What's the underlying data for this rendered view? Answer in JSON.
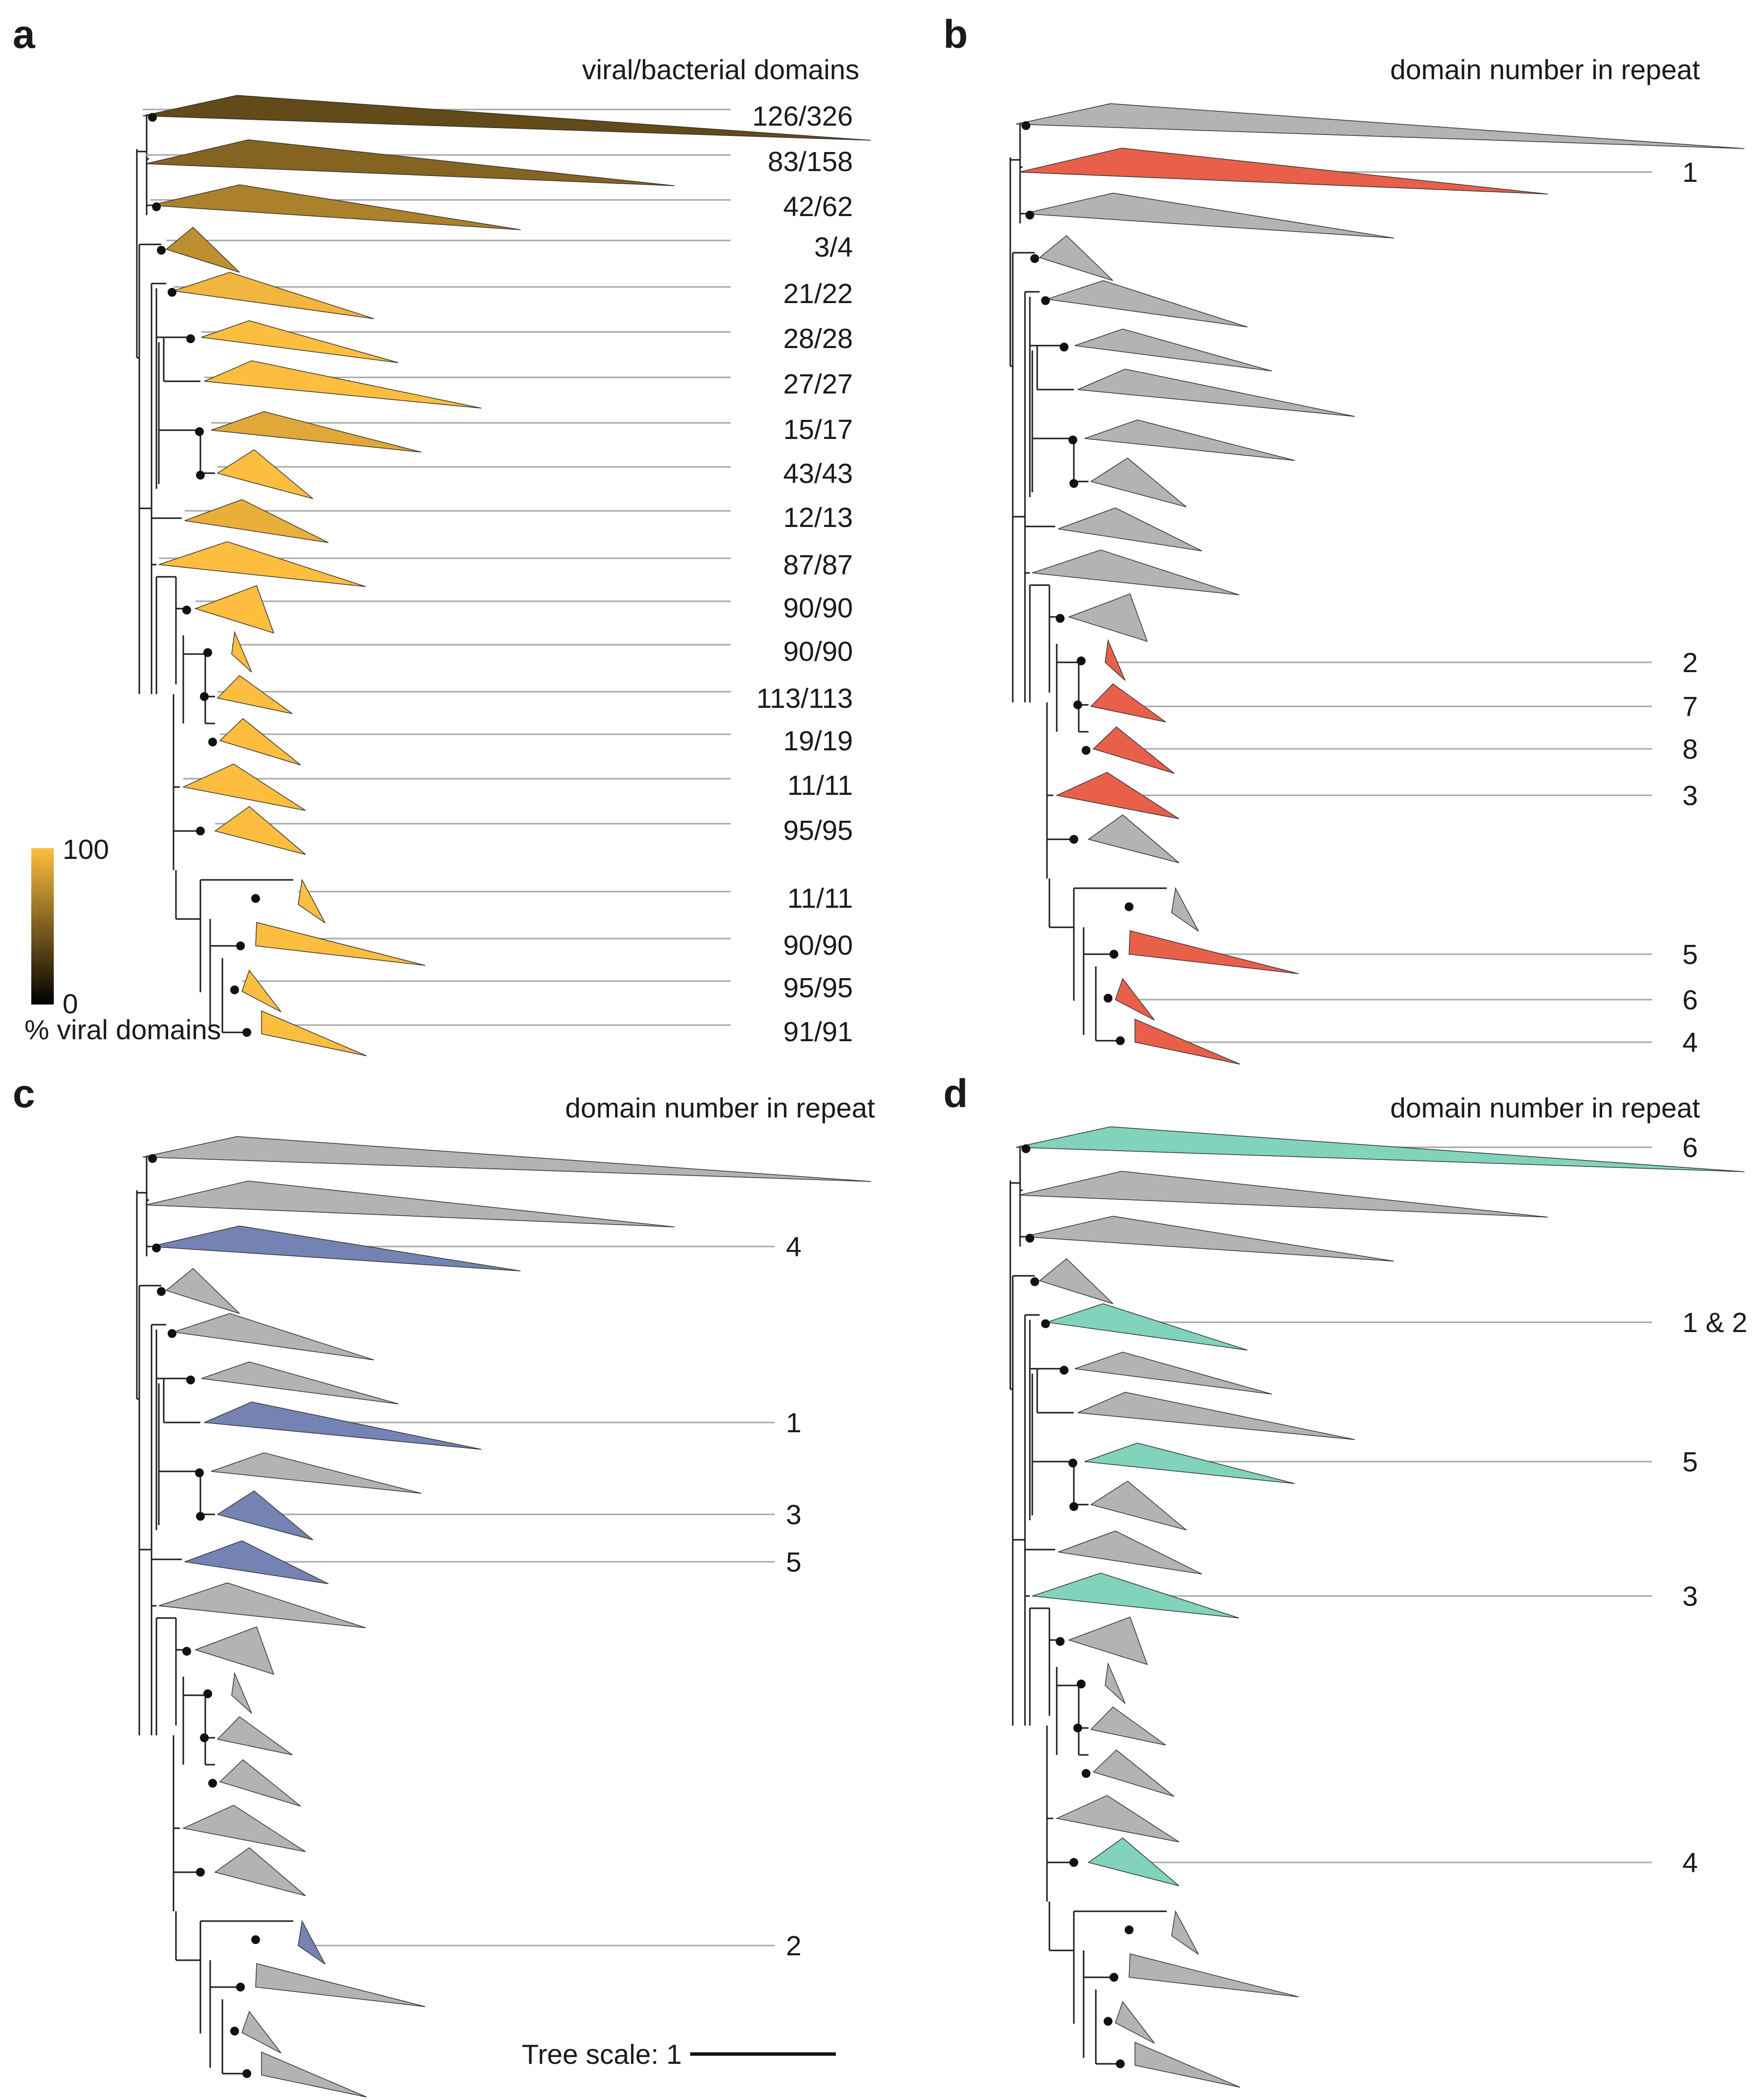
{
  "panels": [
    {
      "id": "a",
      "title": "viral/bacterial domains",
      "highlight_color": null,
      "clades": [
        {
          "tip": "126/326",
          "viral_pct": 38.7
        },
        {
          "tip": "83/158",
          "viral_pct": 52.5
        },
        {
          "tip": "42/62",
          "viral_pct": 67.7
        },
        {
          "tip": "3/4",
          "viral_pct": 75.0
        },
        {
          "tip": "21/22",
          "viral_pct": 95.5
        },
        {
          "tip": "28/28",
          "viral_pct": 100
        },
        {
          "tip": "27/27",
          "viral_pct": 100
        },
        {
          "tip": "15/17",
          "viral_pct": 88.2
        },
        {
          "tip": "43/43",
          "viral_pct": 100
        },
        {
          "tip": "12/13",
          "viral_pct": 92.3
        },
        {
          "tip": "87/87",
          "viral_pct": 100
        },
        {
          "tip": "90/90",
          "viral_pct": 100
        },
        {
          "tip": "90/90",
          "viral_pct": 100
        },
        {
          "tip": "113/113",
          "viral_pct": 100
        },
        {
          "tip": "19/19",
          "viral_pct": 100
        },
        {
          "tip": "11/11",
          "viral_pct": 100
        },
        {
          "tip": "95/95",
          "viral_pct": 100
        },
        {
          "tip": "11/11",
          "viral_pct": 100
        },
        {
          "tip": "90/90",
          "viral_pct": 100
        },
        {
          "tip": "95/95",
          "viral_pct": 100
        },
        {
          "tip": "91/91",
          "viral_pct": 100
        }
      ]
    },
    {
      "id": "b",
      "title": "domain number in repeat",
      "highlight_color": "#E8604A",
      "highlights": [
        {
          "clade": 2,
          "label": "1"
        },
        {
          "clade": 13,
          "label": "2"
        },
        {
          "clade": 14,
          "label": "7"
        },
        {
          "clade": 15,
          "label": "8"
        },
        {
          "clade": 16,
          "label": "3"
        },
        {
          "clade": 19,
          "label": "5"
        },
        {
          "clade": 20,
          "label": "6"
        },
        {
          "clade": 21,
          "label": "4"
        }
      ]
    },
    {
      "id": "c",
      "title": "domain number in repeat",
      "highlight_color": "#7483B3",
      "highlights": [
        {
          "clade": 3,
          "label": "4"
        },
        {
          "clade": 7,
          "label": "1"
        },
        {
          "clade": 9,
          "label": "3"
        },
        {
          "clade": 10,
          "label": "5"
        },
        {
          "clade": 18,
          "label": "2"
        }
      ]
    },
    {
      "id": "d",
      "title": "domain number in repeat",
      "highlight_color": "#82D3BB",
      "highlights": [
        {
          "clade": 1,
          "label": "6"
        },
        {
          "clade": 5,
          "label": "1 & 2"
        },
        {
          "clade": 8,
          "label": "5"
        },
        {
          "clade": 11,
          "label": "3"
        },
        {
          "clade": 17,
          "label": "4"
        }
      ]
    }
  ],
  "colorbar": {
    "max_label": "100",
    "min_label": "0",
    "caption": "% viral domains",
    "color_low": "#000000",
    "color_high": "#FDBE40"
  },
  "scale_bar": {
    "label": "Tree scale: 1",
    "length_units": 1
  },
  "collapsed_color": "#B3B3B3"
}
